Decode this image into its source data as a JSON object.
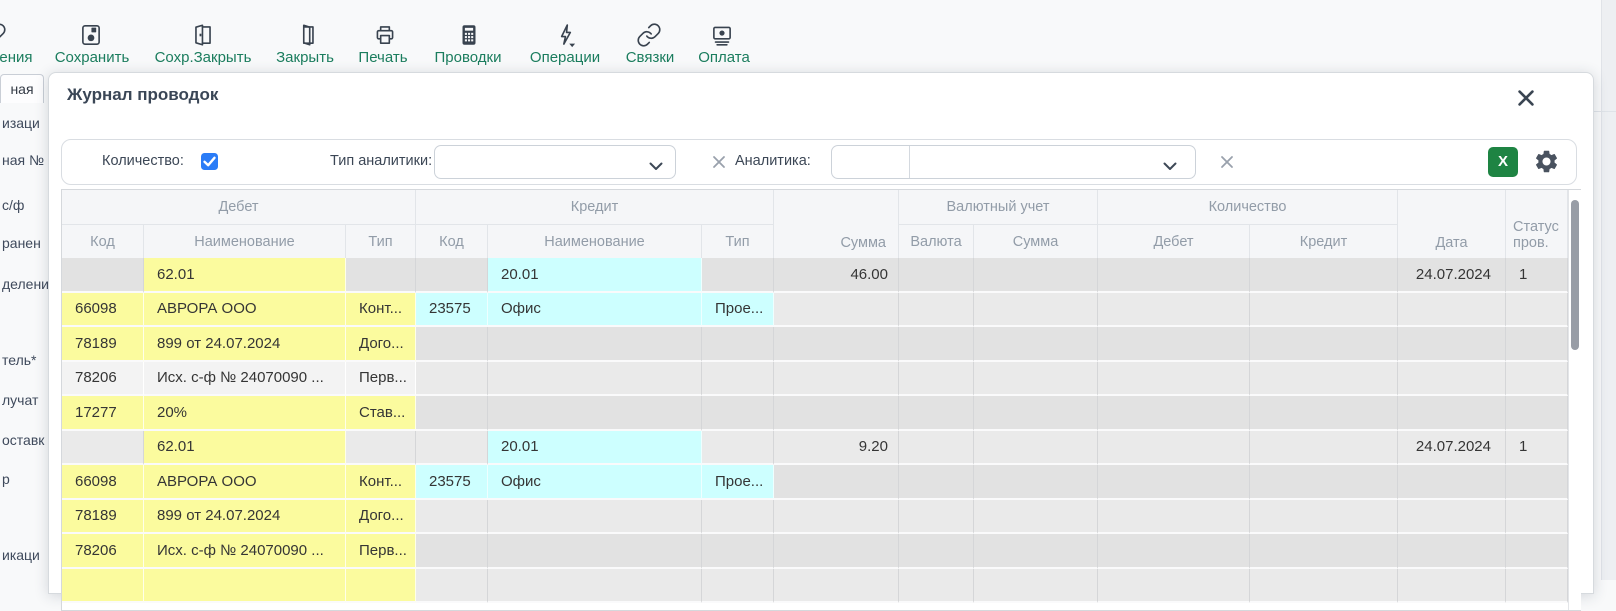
{
  "toolbar": {
    "buttons": [
      {
        "label": "ения",
        "icon": "chain-link-partial-icon"
      },
      {
        "label": "Сохранить",
        "icon": "save-icon"
      },
      {
        "label": "Сохр.Закрыть",
        "icon": "door-exit-icon"
      },
      {
        "label": "Закрыть",
        "icon": "door-icon"
      },
      {
        "label": "Печать",
        "icon": "printer-icon"
      },
      {
        "label": "Проводки",
        "icon": "calculator-icon"
      },
      {
        "label": "Операции",
        "icon": "lightning-dropdown-icon"
      },
      {
        "label": "Связки",
        "icon": "chain-link-icon"
      },
      {
        "label": "Оплата",
        "icon": "banknote-icon"
      }
    ]
  },
  "background": {
    "tab_label": "ная",
    "left_fragments": [
      "изаци",
      "ная №",
      "с/ф",
      "ранен",
      "делени",
      "тель*",
      "лучат",
      "оставк",
      "р",
      "икаци"
    ]
  },
  "modal": {
    "title": "Журнал проводок",
    "close_icon": "close-icon"
  },
  "filters": {
    "quantity_label": "Количество:",
    "quantity_checked": true,
    "type_label": "Тип аналитики:",
    "type_value": "",
    "analytics_label": "Аналитика:",
    "analytics_code_value": "",
    "analytics_value": "",
    "excel_button_label": "X"
  },
  "table": {
    "header": {
      "groups": [
        {
          "label": "Дебет",
          "col": 1,
          "span": 3
        },
        {
          "label": "Кредит",
          "col": 4,
          "span": 3
        },
        {
          "label": "Валютный учет",
          "col": 8,
          "span": 2
        },
        {
          "label": "Количество",
          "col": 10,
          "span": 2
        }
      ],
      "tall": [
        {
          "label": "Сумма",
          "col": 7,
          "style": "tall-right"
        },
        {
          "label": "Дата",
          "col": 12,
          "style": ""
        },
        {
          "label": "Статус пров.",
          "col": 13,
          "style": "tall-status"
        }
      ],
      "sub": [
        {
          "label": "Код",
          "col": 1
        },
        {
          "label": "Наименование",
          "col": 2
        },
        {
          "label": "Тип",
          "col": 3
        },
        {
          "label": "Код",
          "col": 4
        },
        {
          "label": "Наименование",
          "col": 5
        },
        {
          "label": "Тип",
          "col": 6
        },
        {
          "label": "Валюта",
          "col": 8
        },
        {
          "label": "Сумма",
          "col": 9
        },
        {
          "label": "Дебет",
          "col": 10
        },
        {
          "label": "Кредит",
          "col": 11
        }
      ]
    },
    "rows": [
      {
        "cells": [
          {
            "c": 1,
            "t": "62.01",
            "h": "y"
          },
          {
            "c": 4,
            "t": "20.01",
            "h": "c"
          },
          {
            "c": 6,
            "t": "46.00"
          },
          {
            "c": 11,
            "t": "24.07.2024"
          },
          {
            "c": 12,
            "t": "1"
          }
        ]
      },
      {
        "cells": [
          {
            "c": 0,
            "t": "66098",
            "h": "y"
          },
          {
            "c": 1,
            "t": "АВРОРА ООО",
            "h": "y"
          },
          {
            "c": 2,
            "t": "Конт...",
            "h": "y"
          },
          {
            "c": 3,
            "t": "23575",
            "h": "c"
          },
          {
            "c": 4,
            "t": "Офис",
            "h": "c"
          },
          {
            "c": 5,
            "t": "Прое...",
            "h": "c"
          }
        ]
      },
      {
        "cells": [
          {
            "c": 0,
            "t": "78189",
            "h": "y"
          },
          {
            "c": 1,
            "t": "899 от 24.07.2024",
            "h": "y"
          },
          {
            "c": 2,
            "t": "Дого...",
            "h": "y"
          }
        ]
      },
      {
        "cells": [
          {
            "c": 0,
            "t": "78206",
            "h": "w"
          },
          {
            "c": 1,
            "t": "Исх. с-ф № 24070090 ...",
            "h": "w"
          },
          {
            "c": 2,
            "t": "Перв...",
            "h": "w"
          }
        ]
      },
      {
        "cells": [
          {
            "c": 0,
            "t": "17277",
            "h": "y"
          },
          {
            "c": 1,
            "t": "20%",
            "h": "y"
          },
          {
            "c": 2,
            "t": "Став...",
            "h": "y"
          }
        ]
      },
      {
        "cells": [
          {
            "c": 1,
            "t": "62.01",
            "h": "y"
          },
          {
            "c": 4,
            "t": "20.01",
            "h": "c"
          },
          {
            "c": 6,
            "t": "9.20"
          },
          {
            "c": 11,
            "t": "24.07.2024"
          },
          {
            "c": 12,
            "t": "1"
          }
        ]
      },
      {
        "cells": [
          {
            "c": 0,
            "t": "66098",
            "h": "y"
          },
          {
            "c": 1,
            "t": "АВРОРА ООО",
            "h": "y"
          },
          {
            "c": 2,
            "t": "Конт...",
            "h": "y"
          },
          {
            "c": 3,
            "t": "23575",
            "h": "c"
          },
          {
            "c": 4,
            "t": "Офис",
            "h": "c"
          },
          {
            "c": 5,
            "t": "Прое...",
            "h": "c"
          }
        ]
      },
      {
        "cells": [
          {
            "c": 0,
            "t": "78189",
            "h": "y"
          },
          {
            "c": 1,
            "t": "899 от 24.07.2024",
            "h": "y"
          },
          {
            "c": 2,
            "t": "Дого...",
            "h": "y"
          }
        ]
      },
      {
        "cells": [
          {
            "c": 0,
            "t": "78206",
            "h": "y"
          },
          {
            "c": 1,
            "t": "Исх. с-ф № 24070090 ...",
            "h": "y"
          },
          {
            "c": 2,
            "t": "Перв...",
            "h": "y"
          }
        ]
      },
      {
        "cells": [
          {
            "c": 0,
            "t": "",
            "h": "y"
          },
          {
            "c": 1,
            "t": "",
            "h": "y"
          },
          {
            "c": 2,
            "t": "",
            "h": "y"
          }
        ]
      }
    ]
  },
  "colors": {
    "toolbar_label_green": "#1b7d5e",
    "excel_green": "#1e8443",
    "checkbox_blue": "#2a7cf7",
    "highlight_yellow": "#fbfb9e",
    "highlight_cyan": "#cdffff",
    "row_gray_dark": "#e2e2e2",
    "row_gray_light": "#eaeaea"
  }
}
